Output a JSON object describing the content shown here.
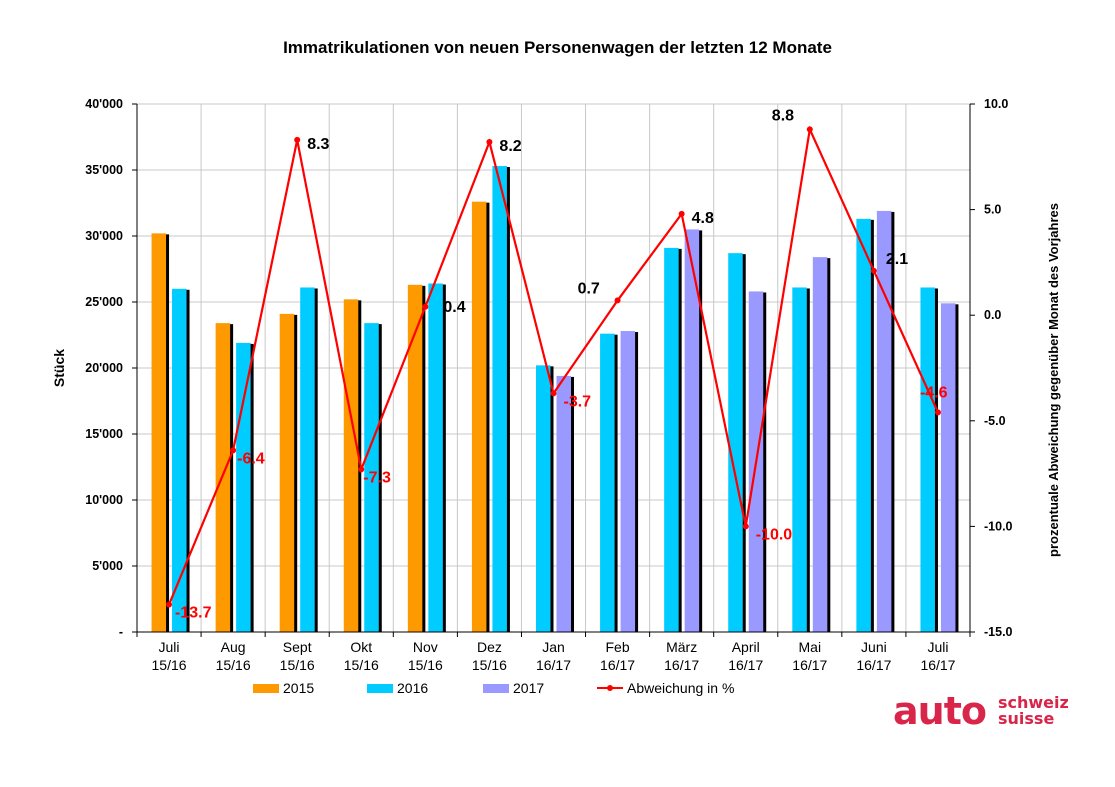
{
  "chart_data": {
    "type": "bar",
    "title": "Immatrikulationen von neuen Personenwagen der letzten 12 Monate",
    "ylabel": "Stück",
    "y2label": "prozentuale Abweichung gegenüber Monat des Vorjahres",
    "ylim": [
      0,
      40000
    ],
    "y2lim": [
      -15,
      10
    ],
    "y_ticks": [
      {
        "value": 0,
        "label": "-"
      },
      {
        "value": 5000,
        "label": "5'000"
      },
      {
        "value": 10000,
        "label": "10'000"
      },
      {
        "value": 15000,
        "label": "15'000"
      },
      {
        "value": 20000,
        "label": "20'000"
      },
      {
        "value": 25000,
        "label": "25'000"
      },
      {
        "value": 30000,
        "label": "30'000"
      },
      {
        "value": 35000,
        "label": "35'000"
      },
      {
        "value": 40000,
        "label": "40'000"
      }
    ],
    "y2_ticks": [
      {
        "value": 10,
        "label": "10.0"
      },
      {
        "value": 5,
        "label": "5.0"
      },
      {
        "value": 0,
        "label": "0.0"
      },
      {
        "value": -5,
        "label": "-5.0"
      },
      {
        "value": -10,
        "label": "-10.0"
      },
      {
        "value": -15,
        "label": "-15.0"
      }
    ],
    "grid": true,
    "legend_position": "bottom",
    "categories": [
      [
        "Juli",
        "15/16"
      ],
      [
        "Aug",
        "15/16"
      ],
      [
        "Sept",
        "15/16"
      ],
      [
        "Okt",
        "15/16"
      ],
      [
        "Nov",
        "15/16"
      ],
      [
        "Dez",
        "15/16"
      ],
      [
        "Jan",
        "16/17"
      ],
      [
        "Feb",
        "16/17"
      ],
      [
        "März",
        "16/17"
      ],
      [
        "April",
        "16/17"
      ],
      [
        "Mai",
        "16/17"
      ],
      [
        "Juni",
        "16/17"
      ],
      [
        "Juli",
        "16/17"
      ]
    ],
    "series": [
      {
        "name": "2015",
        "color": "#ff9900",
        "values": [
          30200,
          23400,
          24100,
          25200,
          26300,
          32600,
          null,
          null,
          null,
          null,
          null,
          null,
          null
        ]
      },
      {
        "name": "2016",
        "color": "#00ccff",
        "values": [
          26000,
          21900,
          26100,
          23400,
          26400,
          35300,
          20200,
          22600,
          29100,
          28700,
          26100,
          31300,
          26100
        ]
      },
      {
        "name": "2017",
        "color": "#9999ff",
        "values": [
          null,
          null,
          null,
          null,
          null,
          null,
          19400,
          22800,
          30500,
          25800,
          28400,
          31900,
          24900
        ]
      }
    ],
    "line_series": {
      "name": "Abweichung in %",
      "color": "#ff0000",
      "axis": "right",
      "values": [
        -13.7,
        -6.4,
        8.3,
        -7.3,
        0.4,
        8.2,
        -3.7,
        0.7,
        4.8,
        -10.0,
        8.8,
        2.1,
        -4.6
      ],
      "labels": [
        "-13.7",
        "-6.4",
        "8.3",
        "-7.3",
        "0.4",
        "8.2",
        "-3.7",
        "0.7",
        "4.8",
        "-10.0",
        "8.8",
        "2.1",
        "-4.6"
      ]
    }
  },
  "logo": {
    "main": "auto",
    "line1": "schweiz",
    "line2": "suisse",
    "color": "#d9254a"
  }
}
